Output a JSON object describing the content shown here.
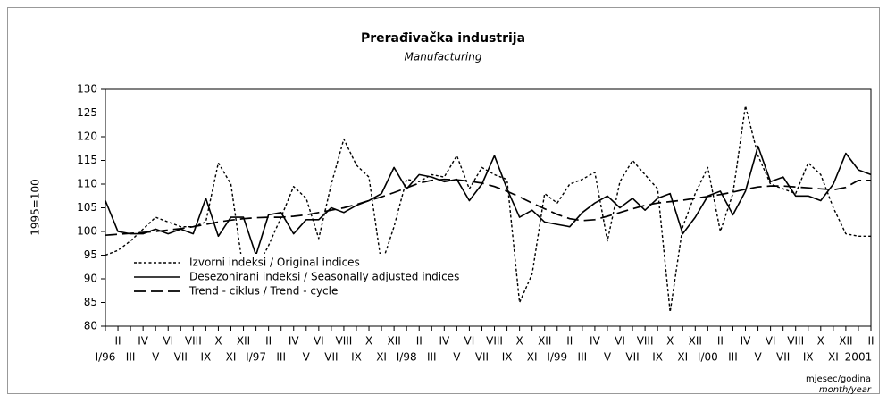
{
  "chart_data": {
    "type": "line",
    "title": "Prerađivačka industrija",
    "subtitle": "Manufacturing",
    "ylabel": "1995=100",
    "xlabel": "mjesec/godina",
    "xlabel_en": "month/year",
    "categories": [
      "I/96",
      "II",
      "III",
      "IV",
      "V",
      "VI",
      "VII",
      "VIII",
      "IX",
      "X",
      "XI",
      "XII",
      "I/97",
      "II",
      "III",
      "IV",
      "V",
      "VI",
      "VII",
      "VIII",
      "IX",
      "X",
      "XI",
      "XII",
      "I/98",
      "II",
      "III",
      "IV",
      "V",
      "VI",
      "VII",
      "VIII",
      "IX",
      "X",
      "XI",
      "XII",
      "I/99",
      "II",
      "III",
      "IV",
      "V",
      "VI",
      "VII",
      "VIII",
      "IX",
      "X",
      "XI",
      "XII",
      "I/00",
      "II",
      "III",
      "IV",
      "V",
      "VI",
      "VII",
      "VIII",
      "IX",
      "X",
      "XI",
      "XII",
      "2001",
      "II"
    ],
    "series": [
      {
        "name": "Izvorni indeksi / Original indices",
        "color": "#000000",
        "style": "dotted",
        "values": [
          95,
          96,
          98,
          100.5,
          103,
          102,
          101,
          101,
          102,
          114.5,
          110,
          91.5,
          92,
          97,
          103,
          109.5,
          107,
          98.5,
          110,
          119.5,
          114,
          111.5,
          93,
          101,
          111,
          110.5,
          112,
          111.5,
          116,
          109,
          113.5,
          112,
          111,
          85,
          91,
          108,
          106,
          110,
          111,
          112.5,
          98,
          110.5,
          115,
          112,
          109,
          83,
          101,
          108,
          113.5,
          100,
          108,
          126.5,
          116,
          110,
          109,
          108,
          114.5,
          112,
          105,
          99.5,
          99,
          99
        ]
      },
      {
        "name": "Desezonirani indeksi / Seasonally adjusted indices",
        "color": "#000000",
        "style": "solid",
        "values": [
          106.5,
          100,
          99.5,
          99.5,
          100.5,
          99.5,
          100.5,
          99.5,
          107,
          99,
          103,
          103,
          95,
          103.5,
          104,
          99.5,
          102.5,
          102.5,
          105,
          104,
          105.5,
          106.5,
          108,
          113.5,
          109,
          112,
          111.5,
          110.5,
          111,
          106.5,
          110,
          116,
          109,
          103,
          104.5,
          102,
          101.5,
          101,
          104,
          106,
          107.5,
          105,
          107,
          104.5,
          107,
          108,
          99.5,
          103,
          107.5,
          108.5,
          103.5,
          108.5,
          118,
          110.5,
          111.5,
          107.5,
          107.5,
          106.5,
          110,
          116.5,
          113,
          112
        ]
      },
      {
        "name": "Trend - ciklus / Trend - cycle",
        "color": "#000000",
        "style": "dashed",
        "values": [
          99.2,
          99.4,
          99.6,
          99.8,
          100,
          100.3,
          100.6,
          101,
          101.5,
          102,
          102.4,
          102.7,
          102.9,
          103,
          103,
          103.2,
          103.5,
          104,
          104.5,
          105,
          105.7,
          106.5,
          107.3,
          108.2,
          109.2,
          110.2,
          110.8,
          111,
          110.9,
          110.6,
          110.2,
          109.5,
          108.5,
          107.3,
          106,
          104.8,
          103.6,
          102.7,
          102.3,
          102.5,
          103.2,
          104,
          104.8,
          105.5,
          106,
          106.3,
          106.6,
          107,
          107.4,
          107.8,
          108.3,
          108.9,
          109.4,
          109.6,
          109.6,
          109.4,
          109.2,
          109,
          108.8,
          109.3,
          110.8,
          110.8
        ]
      }
    ],
    "ylim": [
      80,
      130
    ],
    "yticks": [
      80,
      85,
      90,
      95,
      100,
      105,
      110,
      115,
      120,
      125,
      130
    ],
    "grid": false,
    "legend": "lower left"
  }
}
